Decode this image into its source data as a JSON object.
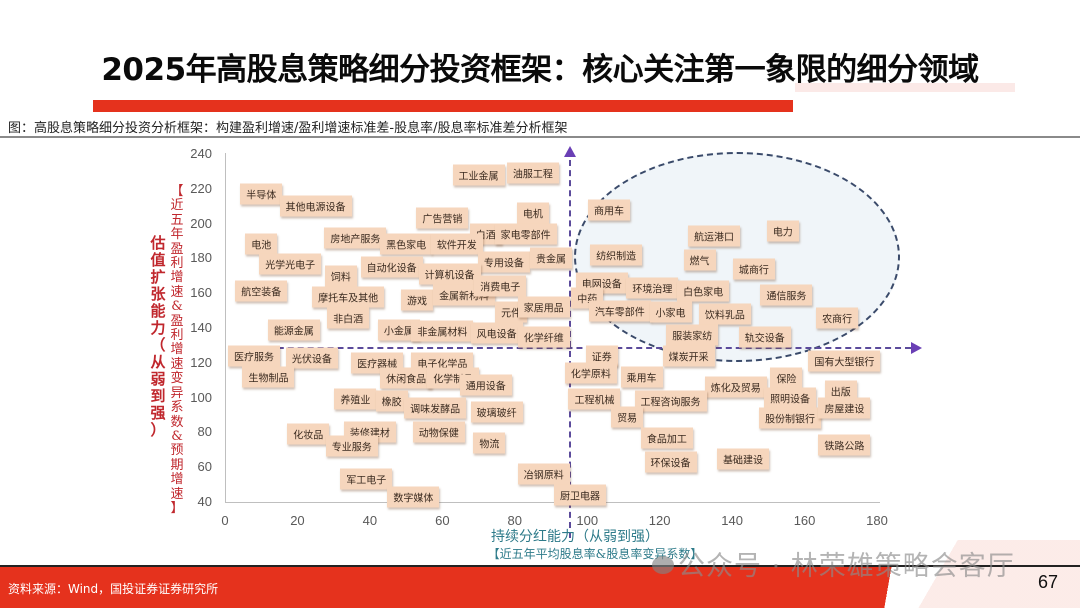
{
  "header": {
    "title": "2025年高股息策略细分投资框架：核心关注第一象限的细分领域",
    "subtitle": "图：高股息策略细分投资分析框架：构建盈利增速/盈利增速标准差-股息率/股息率标准差分析框架"
  },
  "footer": {
    "source": "资料来源：Wind，国投证券证券研究所",
    "page_number": "67",
    "watermark": "公众号 · 林荣雄策略会客厅"
  },
  "colors": {
    "accent_red": "#e5321d",
    "label_bg": "#f6d6bd",
    "axis_text": "#595959",
    "ylabel": "#c0272d",
    "xlabel": "#2e7b8a",
    "divider": "#5b4a9b"
  },
  "chart_data": {
    "type": "scatter",
    "title": "高股息策略细分投资分析框架",
    "xlabel": "持续分红能力（从弱到强）",
    "xlabel_sub": "【近五年平均股息率&股息率变异系数】",
    "ylabel": "估值扩张能力（从弱到强）",
    "ylabel_sub": "【近五年盈利增速&盈利增速变异系数&预期增速】",
    "xlim": [
      0,
      180
    ],
    "ylim": [
      40,
      240
    ],
    "xticks": [
      "0",
      "20",
      "40",
      "60",
      "80",
      "100",
      "120",
      "140",
      "160",
      "180"
    ],
    "yticks": [
      "240",
      "220",
      "200",
      "180",
      "160",
      "140",
      "120",
      "100",
      "80",
      "60",
      "40"
    ],
    "grid": false,
    "quadrant_divider": {
      "x": 95,
      "y": 129
    },
    "highlight": "第一象限（虚线椭圆圈出）",
    "points": [
      {
        "label": "半导体",
        "x": 10,
        "y": 217
      },
      {
        "label": "其他电源设备",
        "x": 25,
        "y": 210
      },
      {
        "label": "工业金属",
        "x": 70,
        "y": 228
      },
      {
        "label": "油服工程",
        "x": 85,
        "y": 229
      },
      {
        "label": "广告营销",
        "x": 60,
        "y": 203
      },
      {
        "label": "电机",
        "x": 85,
        "y": 206
      },
      {
        "label": "房地产服务",
        "x": 36,
        "y": 192
      },
      {
        "label": "黑色家电",
        "x": 50,
        "y": 188
      },
      {
        "label": "白酒",
        "x": 72,
        "y": 194
      },
      {
        "label": "家电零部件",
        "x": 83,
        "y": 194
      },
      {
        "label": "软件开发",
        "x": 64,
        "y": 188
      },
      {
        "label": "电池",
        "x": 10,
        "y": 188
      },
      {
        "label": "光学光电子",
        "x": 18,
        "y": 177
      },
      {
        "label": "自动化设备",
        "x": 46,
        "y": 175
      },
      {
        "label": "专用设备",
        "x": 77,
        "y": 178
      },
      {
        "label": "贵金属",
        "x": 90,
        "y": 180
      },
      {
        "label": "饲料",
        "x": 32,
        "y": 170
      },
      {
        "label": "计算机设备",
        "x": 62,
        "y": 171
      },
      {
        "label": "航空装备",
        "x": 10,
        "y": 161
      },
      {
        "label": "摩托车及其他",
        "x": 34,
        "y": 158
      },
      {
        "label": "游戏",
        "x": 53,
        "y": 156
      },
      {
        "label": "金属新材料",
        "x": 66,
        "y": 159
      },
      {
        "label": "消费电子",
        "x": 76,
        "y": 164
      },
      {
        "label": "元件",
        "x": 79,
        "y": 149
      },
      {
        "label": "家居用品",
        "x": 88,
        "y": 152
      },
      {
        "label": "非白酒",
        "x": 34,
        "y": 146
      },
      {
        "label": "能源金属",
        "x": 19,
        "y": 139
      },
      {
        "label": "小金属",
        "x": 48,
        "y": 139
      },
      {
        "label": "非金属材料",
        "x": 60,
        "y": 138
      },
      {
        "label": "风电设备",
        "x": 75,
        "y": 137
      },
      {
        "label": "化学纤维",
        "x": 88,
        "y": 135
      },
      {
        "label": "商用车",
        "x": 106,
        "y": 208
      },
      {
        "label": "纺织制造",
        "x": 108,
        "y": 182
      },
      {
        "label": "电网设备",
        "x": 104,
        "y": 166
      },
      {
        "label": "中药",
        "x": 100,
        "y": 157
      },
      {
        "label": "环境治理",
        "x": 118,
        "y": 163
      },
      {
        "label": "航运港口",
        "x": 135,
        "y": 193
      },
      {
        "label": "电力",
        "x": 154,
        "y": 196
      },
      {
        "label": "燃气",
        "x": 131,
        "y": 179
      },
      {
        "label": "城商行",
        "x": 146,
        "y": 174
      },
      {
        "label": "白色家电",
        "x": 132,
        "y": 161
      },
      {
        "label": "通信服务",
        "x": 155,
        "y": 159
      },
      {
        "label": "汽车零部件",
        "x": 109,
        "y": 150
      },
      {
        "label": "小家电",
        "x": 123,
        "y": 149
      },
      {
        "label": "饮料乳品",
        "x": 138,
        "y": 148
      },
      {
        "label": "农商行",
        "x": 169,
        "y": 146
      },
      {
        "label": "服装家纺",
        "x": 129,
        "y": 136
      },
      {
        "label": "轨交设备",
        "x": 149,
        "y": 135
      },
      {
        "label": "煤炭开采",
        "x": 128,
        "y": 124
      },
      {
        "label": "证券",
        "x": 104,
        "y": 124
      },
      {
        "label": "国有大型银行",
        "x": 171,
        "y": 121
      },
      {
        "label": "化学原料",
        "x": 101,
        "y": 114
      },
      {
        "label": "乘用车",
        "x": 115,
        "y": 112
      },
      {
        "label": "炼化及贸易",
        "x": 141,
        "y": 106
      },
      {
        "label": "保险",
        "x": 155,
        "y": 111
      },
      {
        "label": "工程机械",
        "x": 102,
        "y": 99
      },
      {
        "label": "工程咨询服务",
        "x": 123,
        "y": 98
      },
      {
        "label": "照明设备",
        "x": 156,
        "y": 100
      },
      {
        "label": "出版",
        "x": 170,
        "y": 104
      },
      {
        "label": "贸易",
        "x": 111,
        "y": 89
      },
      {
        "label": "股份制银行",
        "x": 156,
        "y": 88
      },
      {
        "label": "房屋建设",
        "x": 171,
        "y": 94
      },
      {
        "label": "食品加工",
        "x": 122,
        "y": 77
      },
      {
        "label": "铁路公路",
        "x": 171,
        "y": 73
      },
      {
        "label": "环保设备",
        "x": 123,
        "y": 63
      },
      {
        "label": "基础建设",
        "x": 143,
        "y": 65
      },
      {
        "label": "医疗服务",
        "x": 8,
        "y": 124
      },
      {
        "label": "光伏设备",
        "x": 24,
        "y": 123
      },
      {
        "label": "医疗器械",
        "x": 42,
        "y": 120
      },
      {
        "label": "电子化学品",
        "x": 60,
        "y": 120
      },
      {
        "label": "生物制品",
        "x": 12,
        "y": 112
      },
      {
        "label": "休闲食品",
        "x": 50,
        "y": 111
      },
      {
        "label": "化学制品",
        "x": 63,
        "y": 111
      },
      {
        "label": "通用设备",
        "x": 72,
        "y": 107
      },
      {
        "label": "养殖业",
        "x": 36,
        "y": 99
      },
      {
        "label": "橡胶",
        "x": 46,
        "y": 98
      },
      {
        "label": "调味发酵品",
        "x": 58,
        "y": 94
      },
      {
        "label": "玻璃玻纤",
        "x": 75,
        "y": 92
      },
      {
        "label": "化妆品",
        "x": 23,
        "y": 79
      },
      {
        "label": "装修建材",
        "x": 40,
        "y": 80
      },
      {
        "label": "动物保健",
        "x": 59,
        "y": 80
      },
      {
        "label": "专业服务",
        "x": 35,
        "y": 72
      },
      {
        "label": "物流",
        "x": 73,
        "y": 74
      },
      {
        "label": "军工电子",
        "x": 39,
        "y": 53
      },
      {
        "label": "冶钢原料",
        "x": 88,
        "y": 56
      },
      {
        "label": "数字媒体",
        "x": 52,
        "y": 43
      },
      {
        "label": "厨卫电器",
        "x": 98,
        "y": 44
      }
    ]
  }
}
